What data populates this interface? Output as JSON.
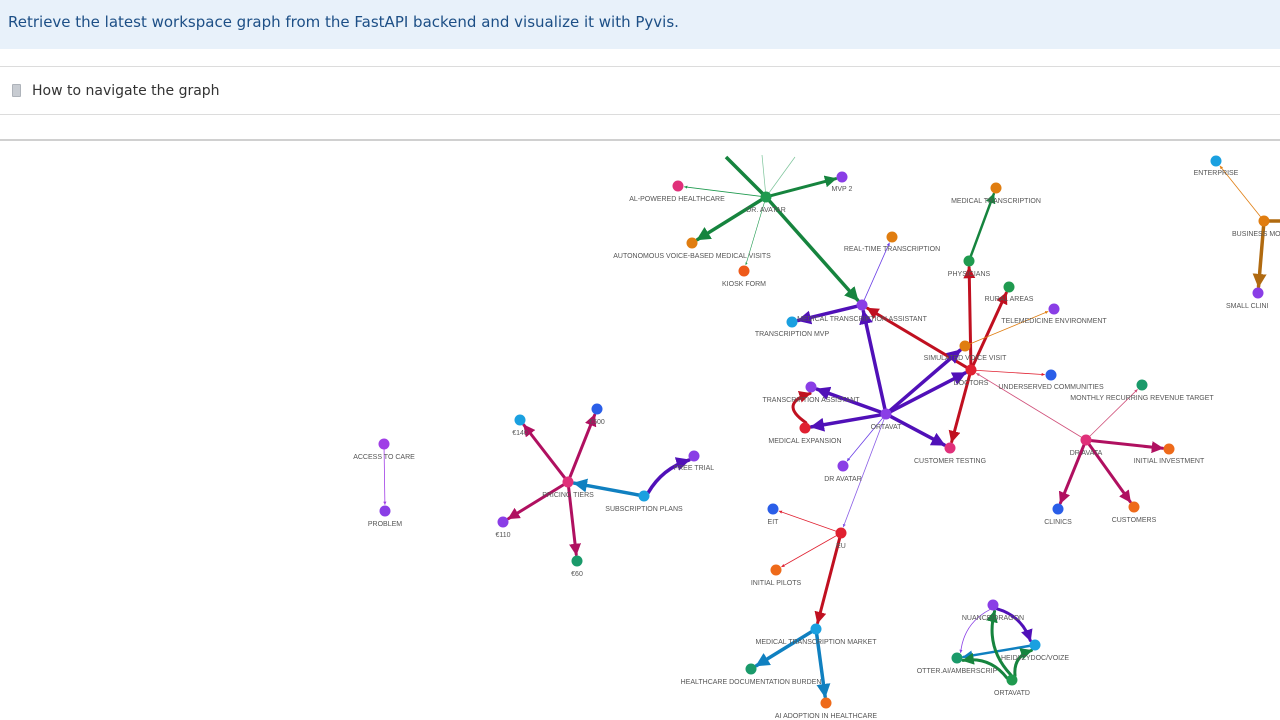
{
  "header": {
    "instruction": "Retrieve the latest workspace graph from the FastAPI backend and visualize it with Pyvis."
  },
  "expander": {
    "label": "How to navigate the graph",
    "icon": "document-icon"
  },
  "graph": {
    "nodes": [
      {
        "id": "al-powered-healthcare",
        "label": "AL-POWERED HEALTHCARE",
        "color": "#e0307a"
      },
      {
        "id": "dr-avatar-top",
        "label": "DR. AVATAR",
        "color": "#1f9a4f"
      },
      {
        "id": "mvp-2",
        "label": "MVP 2",
        "color": "#8a3ee6"
      },
      {
        "id": "autonomous-voice",
        "label": "AUTONOMOUS VOICE-BASED MEDICAL VISITS",
        "color": "#e07d10"
      },
      {
        "id": "kiosk-form",
        "label": "KIOSK FORM",
        "color": "#ee5a1a"
      },
      {
        "id": "real-time-transcription",
        "label": "REAL-TIME TRANSCRIPTION",
        "color": "#e07d10"
      },
      {
        "id": "medical-transcription-assistant",
        "label": "MEDICAL TRANSCRIPTION ASSISTANT",
        "color": "#8a3ee6"
      },
      {
        "id": "transcription-mvp",
        "label": "TRANSCRIPTION MVP",
        "color": "#1aa0e0"
      },
      {
        "id": "medical-transcription-top",
        "label": "MEDICAL TRANSCRIPTION",
        "color": "#e07d10"
      },
      {
        "id": "physicians",
        "label": "PHYSICIANS",
        "color": "#1f9a4f"
      },
      {
        "id": "rural-areas",
        "label": "RURAL AREAS",
        "color": "#1f9a4f"
      },
      {
        "id": "telemedicine-environment",
        "label": "TELEMEDICINE ENVIRONMENT",
        "color": "#8a3ee6"
      },
      {
        "id": "simulated-voice-visit",
        "label": "SIMULATED VOICE VISIT",
        "color": "#e07d10"
      },
      {
        "id": "doctors",
        "label": "DOCTORS",
        "color": "#e02030"
      },
      {
        "id": "underserved-communities",
        "label": "UNDERSERVED COMMUNITIES",
        "color": "#2a5ee8"
      },
      {
        "id": "enterprise",
        "label": "ENTERPRISE",
        "color": "#1aa0e0"
      },
      {
        "id": "business-model",
        "label": "BUSINESS MO",
        "color": "#e07d10"
      },
      {
        "id": "small-clinics",
        "label": "SMALL CLINI",
        "color": "#8a3ee6"
      },
      {
        "id": "monthly-recurring-revenue-target",
        "label": "MONTHLY RECURRING REVENUE TARGET",
        "color": "#1a9a6a"
      },
      {
        "id": "dr-avatar-right",
        "label": "DR AVATA",
        "color": "#e0307a"
      },
      {
        "id": "initial-investment",
        "label": "INITIAL INVESTMENT",
        "color": "#ee6a1a"
      },
      {
        "id": "clinics",
        "label": "CLINICS",
        "color": "#2a5ee8"
      },
      {
        "id": "customers",
        "label": "CUSTOMERS",
        "color": "#ee6a1a"
      },
      {
        "id": "transcription-assistant",
        "label": "TRANSCRIPTION ASSISTANT",
        "color": "#8a3ee6"
      },
      {
        "id": "ortavatd-center",
        "label": "ORTAVAT",
        "color": "#8a3ee6"
      },
      {
        "id": "medical-expansion",
        "label": "MEDICAL EXPANSION",
        "color": "#e02030"
      },
      {
        "id": "customer-testing",
        "label": "CUSTOMER TESTING",
        "color": "#e0307a"
      },
      {
        "id": "dr-avatar-mid",
        "label": "DR AVATAR",
        "color": "#8a3ee6"
      },
      {
        "id": "eit",
        "label": "EIT",
        "color": "#2a5ee8"
      },
      {
        "id": "eu",
        "label": "EU",
        "color": "#e02030"
      },
      {
        "id": "initial-pilots",
        "label": "INITIAL PILOTS",
        "color": "#ee6a1a"
      },
      {
        "id": "medical-transcription-market",
        "label": "MEDICAL TRANSCRIPTION MARKET",
        "color": "#1aa0e0"
      },
      {
        "id": "healthcare-documentation-burden",
        "label": "HEALTHCARE DOCUMENTATION BURDEN",
        "color": "#1a9a6a"
      },
      {
        "id": "ai-adoption-in-healthcare",
        "label": "AI ADOPTION IN HEALTHCARE",
        "color": "#ee6a1a"
      },
      {
        "id": "access-to-care",
        "label": "ACCESS TO CARE",
        "color": "#a03ee6"
      },
      {
        "id": "problem",
        "label": "PROBLEM",
        "color": "#8a3ee6"
      },
      {
        "id": "eur-140",
        "label": "€140",
        "color": "#1aa0e0"
      },
      {
        "id": "eur-500",
        "label": "€500",
        "color": "#2a5ee8"
      },
      {
        "id": "free-trial",
        "label": "FREE TRIAL",
        "color": "#8a3ee6"
      },
      {
        "id": "pricing-tiers",
        "label": "PRICING TIERS",
        "color": "#e0307a"
      },
      {
        "id": "subscription-plans",
        "label": "SUBSCRIPTION PLANS",
        "color": "#1aa0e0"
      },
      {
        "id": "eur-110",
        "label": "€110",
        "color": "#8a3ee6"
      },
      {
        "id": "eur-60",
        "label": "€60",
        "color": "#1a9a6a"
      },
      {
        "id": "nuance-dragon",
        "label": "NUANCE/DRAGON",
        "color": "#8a3ee6"
      },
      {
        "id": "heidi-dyvoize",
        "label": "HEIDI/ZYDOC/VOIZE",
        "color": "#1aa0e0"
      },
      {
        "id": "otter-ai",
        "label": "OTTER.AI/AMBERSCRIP",
        "color": "#1a9a6a"
      },
      {
        "id": "ortavatd-bottom",
        "label": "ORTAVATD",
        "color": "#1f9a4f"
      }
    ],
    "edges": [
      {
        "from": "dr-avatar-top",
        "to": "al-powered-healthcare",
        "color": "#1f9a4f",
        "width": 0.8
      },
      {
        "from": "dr-avatar-top",
        "to": "mvp-2",
        "color": "#16843e",
        "width": 3
      },
      {
        "from": "dr-avatar-top",
        "to": "autonomous-voice",
        "color": "#16843e",
        "width": 3.5
      },
      {
        "from": "dr-avatar-top",
        "to": "kiosk-form",
        "color": "#1f9a4f",
        "width": 0.6
      },
      {
        "from": "dr-avatar-top",
        "to": "medical-transcription-assistant",
        "color": "#16843e",
        "width": 3.5
      },
      {
        "from": "medical-transcription-assistant",
        "to": "real-time-transcription",
        "color": "#6a3ee6",
        "width": 0.8
      },
      {
        "from": "medical-transcription-assistant",
        "to": "transcription-mvp",
        "color": "#5010b8",
        "width": 3.5
      },
      {
        "from": "physicians",
        "to": "medical-transcription-top",
        "color": "#16843e",
        "width": 2.5
      },
      {
        "from": "doctors",
        "to": "physicians",
        "color": "#c01020",
        "width": 3
      },
      {
        "from": "doctors",
        "to": "rural-areas",
        "color": "#c01020",
        "width": 3
      },
      {
        "from": "simulated-voice-visit",
        "to": "telemedicine-environment",
        "color": "#e07d10",
        "width": 0.8
      },
      {
        "from": "doctors",
        "to": "medical-transcription-assistant",
        "color": "#c01020",
        "width": 3
      },
      {
        "from": "doctors",
        "to": "underserved-communities",
        "color": "#e02030",
        "width": 0.8
      },
      {
        "from": "doctors",
        "to": "customer-testing",
        "color": "#c01020",
        "width": 3
      },
      {
        "from": "dr-avatar-right",
        "to": "doctors",
        "color": "#d0507a",
        "width": 0.8
      },
      {
        "from": "dr-avatar-right",
        "to": "monthly-recurring-revenue-target",
        "color": "#d0507a",
        "width": 0.8
      },
      {
        "from": "dr-avatar-right",
        "to": "initial-investment",
        "color": "#b01060",
        "width": 3
      },
      {
        "from": "dr-avatar-right",
        "to": "clinics",
        "color": "#b01060",
        "width": 3
      },
      {
        "from": "dr-avatar-right",
        "to": "customers",
        "color": "#b01060",
        "width": 3
      },
      {
        "from": "business-model",
        "to": "enterprise",
        "color": "#e07d10",
        "width": 0.8
      },
      {
        "from": "business-model",
        "to": "small-clinics",
        "color": "#b06a10",
        "width": 3.5
      },
      {
        "from": "ortavatd-center",
        "to": "medical-transcription-assistant",
        "color": "#5010b8",
        "width": 3.5
      },
      {
        "from": "ortavatd-center",
        "to": "simulated-voice-visit",
        "color": "#5010b8",
        "width": 3.5
      },
      {
        "from": "ortavatd-center",
        "to": "doctors",
        "color": "#5010b8",
        "width": 3.5
      },
      {
        "from": "ortavatd-center",
        "to": "transcription-assistant",
        "color": "#5010b8",
        "width": 3.5
      },
      {
        "from": "ortavatd-center",
        "to": "medical-expansion",
        "color": "#5010b8",
        "width": 3.5
      },
      {
        "from": "ortavatd-center",
        "to": "customer-testing",
        "color": "#5010b8",
        "width": 3.5
      },
      {
        "from": "ortavatd-center",
        "to": "dr-avatar-mid",
        "color": "#6a3ee6",
        "width": 0.8
      },
      {
        "from": "ortavatd-center",
        "to": "eu",
        "color": "#8a5ee6",
        "width": 0.8
      },
      {
        "from": "medical-expansion",
        "to": "transcription-assistant",
        "color": "#c01020",
        "width": 3
      },
      {
        "from": "eu",
        "to": "eit",
        "color": "#e02030",
        "width": 0.8
      },
      {
        "from": "eu",
        "to": "initial-pilots",
        "color": "#e02030",
        "width": 0.8
      },
      {
        "from": "eu",
        "to": "medical-transcription-market",
        "color": "#c01020",
        "width": 3
      },
      {
        "from": "medical-transcription-market",
        "to": "healthcare-documentation-burden",
        "color": "#1080c0",
        "width": 3.5
      },
      {
        "from": "medical-transcription-market",
        "to": "ai-adoption-in-healthcare",
        "color": "#1080c0",
        "width": 3.5
      },
      {
        "from": "access-to-care",
        "to": "problem",
        "color": "#a03ee6",
        "width": 0.8
      },
      {
        "from": "pricing-tiers",
        "to": "eur-140",
        "color": "#b01060",
        "width": 3
      },
      {
        "from": "pricing-tiers",
        "to": "eur-500",
        "color": "#b01060",
        "width": 3
      },
      {
        "from": "pricing-tiers",
        "to": "eur-110",
        "color": "#b01060",
        "width": 3
      },
      {
        "from": "pricing-tiers",
        "to": "eur-60",
        "color": "#b01060",
        "width": 3
      },
      {
        "from": "subscription-plans",
        "to": "pricing-tiers",
        "color": "#1080c0",
        "width": 3.5
      },
      {
        "from": "subscription-plans",
        "to": "free-trial",
        "color": "#5010b8",
        "width": 3.5
      },
      {
        "from": "nuance-dragon",
        "to": "heidi-dyvoize",
        "color": "#5010b8",
        "width": 3
      },
      {
        "from": "nuance-dragon",
        "to": "otter-ai",
        "color": "#8a3ee6",
        "width": 0.8
      },
      {
        "from": "heidi-dyvoize",
        "to": "otter-ai",
        "color": "#1080c0",
        "width": 2.5
      },
      {
        "from": "ortavatd-bottom",
        "to": "heidi-dyvoize",
        "color": "#16843e",
        "width": 3
      },
      {
        "from": "ortavatd-bottom",
        "to": "nuance-dragon",
        "color": "#16843e",
        "width": 3
      },
      {
        "from": "ortavatd-bottom",
        "to": "otter-ai",
        "color": "#16843e",
        "width": 3
      }
    ]
  }
}
